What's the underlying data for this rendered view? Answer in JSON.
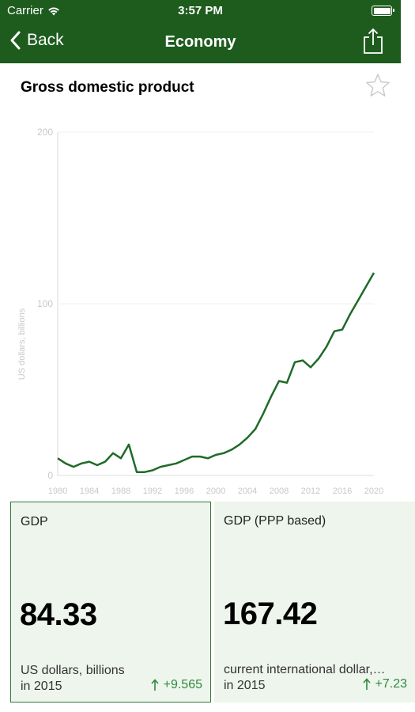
{
  "status_bar": {
    "carrier": "Carrier",
    "time": "3:57 PM"
  },
  "nav": {
    "back_label": "Back",
    "title": "Economy",
    "share_icon": "share-icon"
  },
  "page": {
    "title": "Gross domestic product",
    "favorite_icon": "star-icon"
  },
  "chart_data": {
    "type": "line",
    "title": "",
    "ylabel": "US dollars, billions",
    "xlabel": "",
    "xlim": [
      1980,
      2020
    ],
    "ylim": [
      0,
      200
    ],
    "x_ticks": [
      "1980",
      "1984",
      "1988",
      "1992",
      "1996",
      "2000",
      "2004",
      "2008",
      "2012",
      "2016",
      "2020"
    ],
    "y_ticks": [
      "0",
      "100",
      "200"
    ],
    "grid": "horizontal",
    "line_color": "#1e6b27",
    "x": [
      1980,
      1981,
      1982,
      1983,
      1984,
      1985,
      1986,
      1987,
      1988,
      1989,
      1990,
      1991,
      1992,
      1993,
      1994,
      1995,
      1996,
      1997,
      1998,
      1999,
      2000,
      2001,
      2002,
      2003,
      2004,
      2005,
      2006,
      2007,
      2008,
      2009,
      2010,
      2011,
      2012,
      2013,
      2014,
      2015,
      2016,
      2017,
      2018,
      2019,
      2020
    ],
    "values": [
      10,
      7,
      5,
      7,
      8,
      6,
      8,
      13,
      10,
      18,
      2,
      2,
      3,
      5,
      6,
      7,
      9,
      11,
      11,
      10,
      12,
      13,
      15,
      18,
      22,
      27,
      36,
      46,
      55,
      54,
      66,
      67,
      63,
      68,
      75,
      84,
      85,
      94,
      102,
      110,
      118
    ]
  },
  "cards": [
    {
      "title": "GDP",
      "value": "84.33",
      "unit": "US dollars, billions",
      "year": "in 2015",
      "change": "+9.565",
      "selected": true
    },
    {
      "title": "GDP (PPP based)",
      "value": "167.42",
      "unit": "current international dollar,…",
      "year": "in 2015",
      "change": "+7.23",
      "selected": false
    }
  ]
}
